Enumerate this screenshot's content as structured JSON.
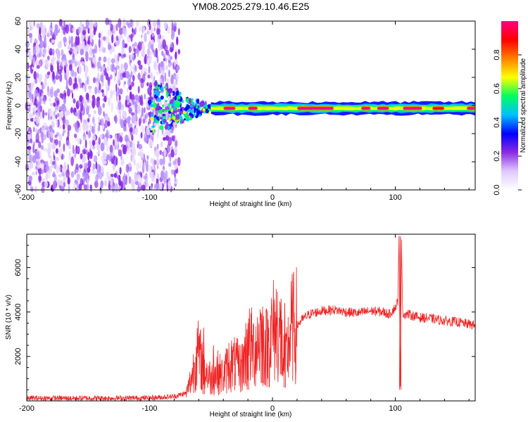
{
  "chart_data": [
    {
      "type": "heatmap",
      "title": "YM08.2025.279.10.46.E25",
      "xlabel": "Height of straight line (km)",
      "ylabel": "Frequency (Hz)",
      "xlim": [
        -200,
        165
      ],
      "ylim": [
        -60,
        60
      ],
      "xticks": [
        -200,
        -100,
        0,
        100
      ],
      "yticks": [
        -60,
        -40,
        -20,
        0,
        20,
        40,
        60
      ],
      "colorbar": {
        "label": "Normalized spectral amplitude",
        "range": [
          0.0,
          1.0
        ],
        "ticks": [
          0.0,
          0.2,
          0.4,
          0.6,
          0.8
        ],
        "colors": [
          "#ffffff",
          "#e0c8ff",
          "#8a2be2",
          "#0000ff",
          "#00c0ff",
          "#00ff60",
          "#ffff00",
          "#ff8000",
          "#ff0000",
          "#ff0080"
        ]
      },
      "regions": [
        {
          "name": "noise",
          "x_range": [
            -200,
            -76
          ],
          "freq_range": [
            -60,
            60
          ],
          "amplitude": "0.0-0.3"
        },
        {
          "name": "transition",
          "x_range": [
            -100,
            -50
          ],
          "freq_range": [
            -20,
            15
          ],
          "amplitude": "0.1-0.6"
        },
        {
          "name": "signal band",
          "x_range": [
            -50,
            165
          ],
          "center_freq": -2,
          "halfwidth_hz": 3,
          "amplitude": "0.4-1.0"
        }
      ],
      "peak_segments": [
        {
          "x": [
            -40,
            -30
          ],
          "amplitude": 0.95
        },
        {
          "x": [
            -20,
            -12
          ],
          "amplitude": 0.95
        },
        {
          "x": [
            20,
            50
          ],
          "amplitude": 1.0
        },
        {
          "x": [
            72,
            80
          ],
          "amplitude": 1.0
        },
        {
          "x": [
            85,
            95
          ],
          "amplitude": 0.95
        },
        {
          "x": [
            106,
            122
          ],
          "amplitude": 1.0
        },
        {
          "x": [
            130,
            140
          ],
          "amplitude": 0.9
        },
        {
          "x": [
            158,
            165
          ],
          "amplitude": 0.95
        }
      ]
    },
    {
      "type": "line",
      "title": "",
      "xlabel": "Height of straight line (km)",
      "ylabel": "SNR (10 * v/v)",
      "xlim": [
        -200,
        165
      ],
      "ylim": [
        0,
        7500
      ],
      "xticks": [
        -200,
        -100,
        0,
        100
      ],
      "yticks": [
        2000,
        4000,
        6000
      ],
      "color": "#ee2222",
      "series": [
        {
          "name": "SNR",
          "x": [
            -200,
            -150,
            -100,
            -80,
            -70,
            -65,
            -62,
            -58,
            -55,
            -50,
            -45,
            -40,
            -35,
            -30,
            -25,
            -20,
            -15,
            -10,
            -5,
            0,
            5,
            10,
            15,
            20,
            25,
            30,
            40,
            50,
            60,
            70,
            80,
            90,
            95,
            100,
            102,
            103,
            104,
            105,
            106,
            110,
            120,
            130,
            140,
            150,
            160,
            165
          ],
          "y": [
            120,
            120,
            130,
            200,
            350,
            1200,
            2200,
            1800,
            1400,
            1000,
            1300,
            1100,
            1700,
            1600,
            1500,
            2500,
            2300,
            3000,
            2400,
            3100,
            3400,
            1500,
            3200,
            3400,
            3700,
            3900,
            4050,
            4100,
            4000,
            3950,
            4050,
            4000,
            3900,
            4200,
            4500,
            7300,
            500,
            7300,
            3900,
            3900,
            3750,
            3700,
            3600,
            3550,
            3450,
            3400
          ],
          "spikes": [
            {
              "x": -56,
              "y": 3300,
              "low": 300
            },
            {
              "x": -48,
              "y": 2500,
              "low": 500
            },
            {
              "x": -20,
              "y": 3500,
              "low": 500
            },
            {
              "x": -8,
              "y": 3900,
              "low": 800
            },
            {
              "x": 7,
              "y": 4600,
              "low": 1200
            },
            {
              "x": 10,
              "y": 4400,
              "low": 600
            },
            {
              "x": 104,
              "y": 7400,
              "low": 500
            }
          ]
        }
      ]
    }
  ]
}
